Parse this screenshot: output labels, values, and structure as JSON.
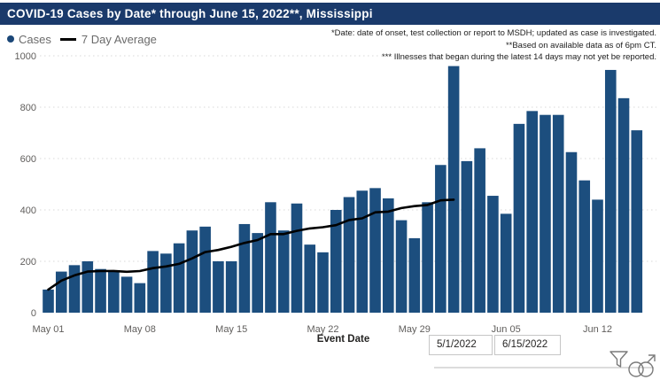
{
  "title": {
    "text": "COVID-19 Cases by Date* through June 15, 2022**, Mississippi"
  },
  "legend": {
    "cases_label": "Cases",
    "avg_label": "7 Day Average"
  },
  "annotations": [
    "*Date: date of onset, test collection or report to MSDH; updated as case is investigated.",
    "**Based on available data as of 6pm CT.",
    "*** Illnesses that began during the latest 14 days may not yet be reported."
  ],
  "colors": {
    "title_bg": "#1a3a6b",
    "bar": "#1c4e7e",
    "legend_dot": "#1b4778",
    "avg_line": "#000000",
    "axis_text": "#605e5c",
    "gridline": "#d8d8d8",
    "annotation_text": "#1d1d1d"
  },
  "chart_data": {
    "type": "bar",
    "title": "COVID-19 Cases by Date* through June 15, 2022**, Mississippi",
    "xlabel": "Event Date",
    "ylabel": "",
    "ylim": [
      0,
      1000
    ],
    "yticks": [
      0,
      200,
      400,
      600,
      800,
      1000
    ],
    "grid": "dotted-horizontal",
    "legend_position": "top-left",
    "categories": [
      "May 01",
      "May 02",
      "May 03",
      "May 04",
      "May 05",
      "May 06",
      "May 07",
      "May 08",
      "May 09",
      "May 10",
      "May 11",
      "May 12",
      "May 13",
      "May 14",
      "May 15",
      "May 16",
      "May 17",
      "May 18",
      "May 19",
      "May 20",
      "May 21",
      "May 22",
      "May 23",
      "May 24",
      "May 25",
      "May 26",
      "May 27",
      "May 28",
      "May 29",
      "May 30",
      "May 31",
      "Jun 01",
      "Jun 02",
      "Jun 03",
      "Jun 04",
      "Jun 05",
      "Jun 06",
      "Jun 07",
      "Jun 08",
      "Jun 09",
      "Jun 10",
      "Jun 11",
      "Jun 12",
      "Jun 13",
      "Jun 14",
      "Jun 15"
    ],
    "xtick_labels": [
      "May 01",
      "May 08",
      "May 15",
      "May 22",
      "May 29",
      "Jun 05",
      "Jun 12"
    ],
    "xtick_indices": [
      0,
      7,
      14,
      21,
      28,
      35,
      42
    ],
    "series": [
      {
        "name": "Cases",
        "type": "bar",
        "values": [
          90,
          160,
          185,
          200,
          170,
          165,
          140,
          115,
          240,
          230,
          270,
          320,
          335,
          200,
          200,
          345,
          310,
          430,
          320,
          425,
          265,
          235,
          400,
          450,
          475,
          485,
          445,
          360,
          290,
          430,
          575,
          960,
          590,
          640,
          455,
          385,
          735,
          785,
          770,
          770,
          625,
          515,
          440,
          945,
          835,
          710
        ]
      },
      {
        "name": "7 Day Average",
        "type": "line",
        "values": [
          90,
          125,
          145,
          160,
          162,
          162.5,
          159.3,
          162.1,
          173.6,
          180,
          190,
          211.4,
          235.7,
          244.3,
          256.4,
          271.4,
          282.9,
          305.7,
          305.7,
          318.6,
          327.9,
          332.9,
          340.7,
          360.7,
          367.1,
          390.7,
          393.6,
          407.1,
          415,
          419.3,
          437.1,
          440,
          null,
          null,
          null,
          null,
          null,
          null,
          null,
          null,
          null,
          null,
          null,
          null,
          null,
          null
        ]
      }
    ]
  },
  "slicer": {
    "start_value": "5/1/2022",
    "end_value": "6/15/2022"
  },
  "icons": {
    "filter": "filter-icon",
    "zoom": "zoom-selection-icon"
  }
}
